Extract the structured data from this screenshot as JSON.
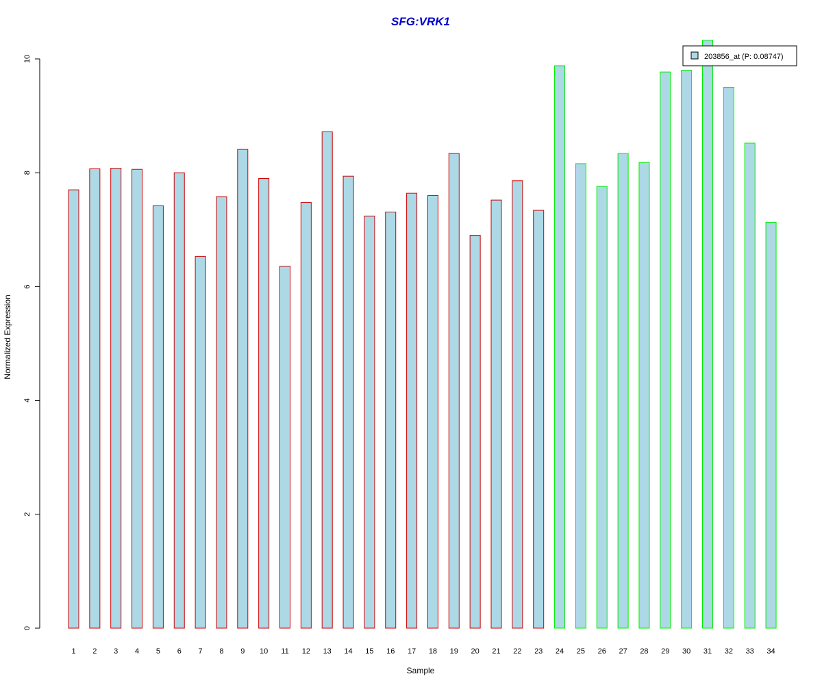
{
  "chart_data": {
    "type": "bar",
    "title": "SFG:VRK1",
    "xlabel": "Sample",
    "ylabel": "Normalized Expression",
    "ylim": [
      0,
      10
    ],
    "yticks": [
      0,
      2,
      4,
      6,
      8,
      10
    ],
    "categories": [
      "1",
      "2",
      "3",
      "4",
      "5",
      "6",
      "7",
      "8",
      "9",
      "10",
      "11",
      "12",
      "13",
      "14",
      "15",
      "16",
      "17",
      "18",
      "19",
      "20",
      "21",
      "22",
      "23",
      "24",
      "25",
      "26",
      "27",
      "28",
      "29",
      "30",
      "31",
      "32",
      "33",
      "34"
    ],
    "values": [
      7.7,
      8.07,
      8.08,
      8.06,
      7.42,
      8.0,
      6.53,
      7.58,
      8.41,
      7.9,
      6.36,
      7.48,
      8.72,
      7.94,
      7.24,
      7.31,
      7.64,
      7.6,
      8.34,
      6.9,
      7.52,
      7.86,
      7.34,
      9.88,
      8.16,
      7.76,
      8.34,
      8.18,
      9.77,
      9.8,
      10.33,
      9.5,
      8.52,
      7.13
    ],
    "groups": [
      {
        "from": 1,
        "to": 23,
        "border_color": "#cc0000"
      },
      {
        "from": 24,
        "to": 34,
        "border_color": "#00ee00"
      }
    ],
    "bar_fill": "#add8e6",
    "title_color": "#0000cc",
    "grid": false,
    "legend": {
      "placement": "top-right",
      "entries": [
        {
          "label": "203856_at (P: 0.08747)",
          "color": "#add8e6"
        }
      ]
    }
  }
}
